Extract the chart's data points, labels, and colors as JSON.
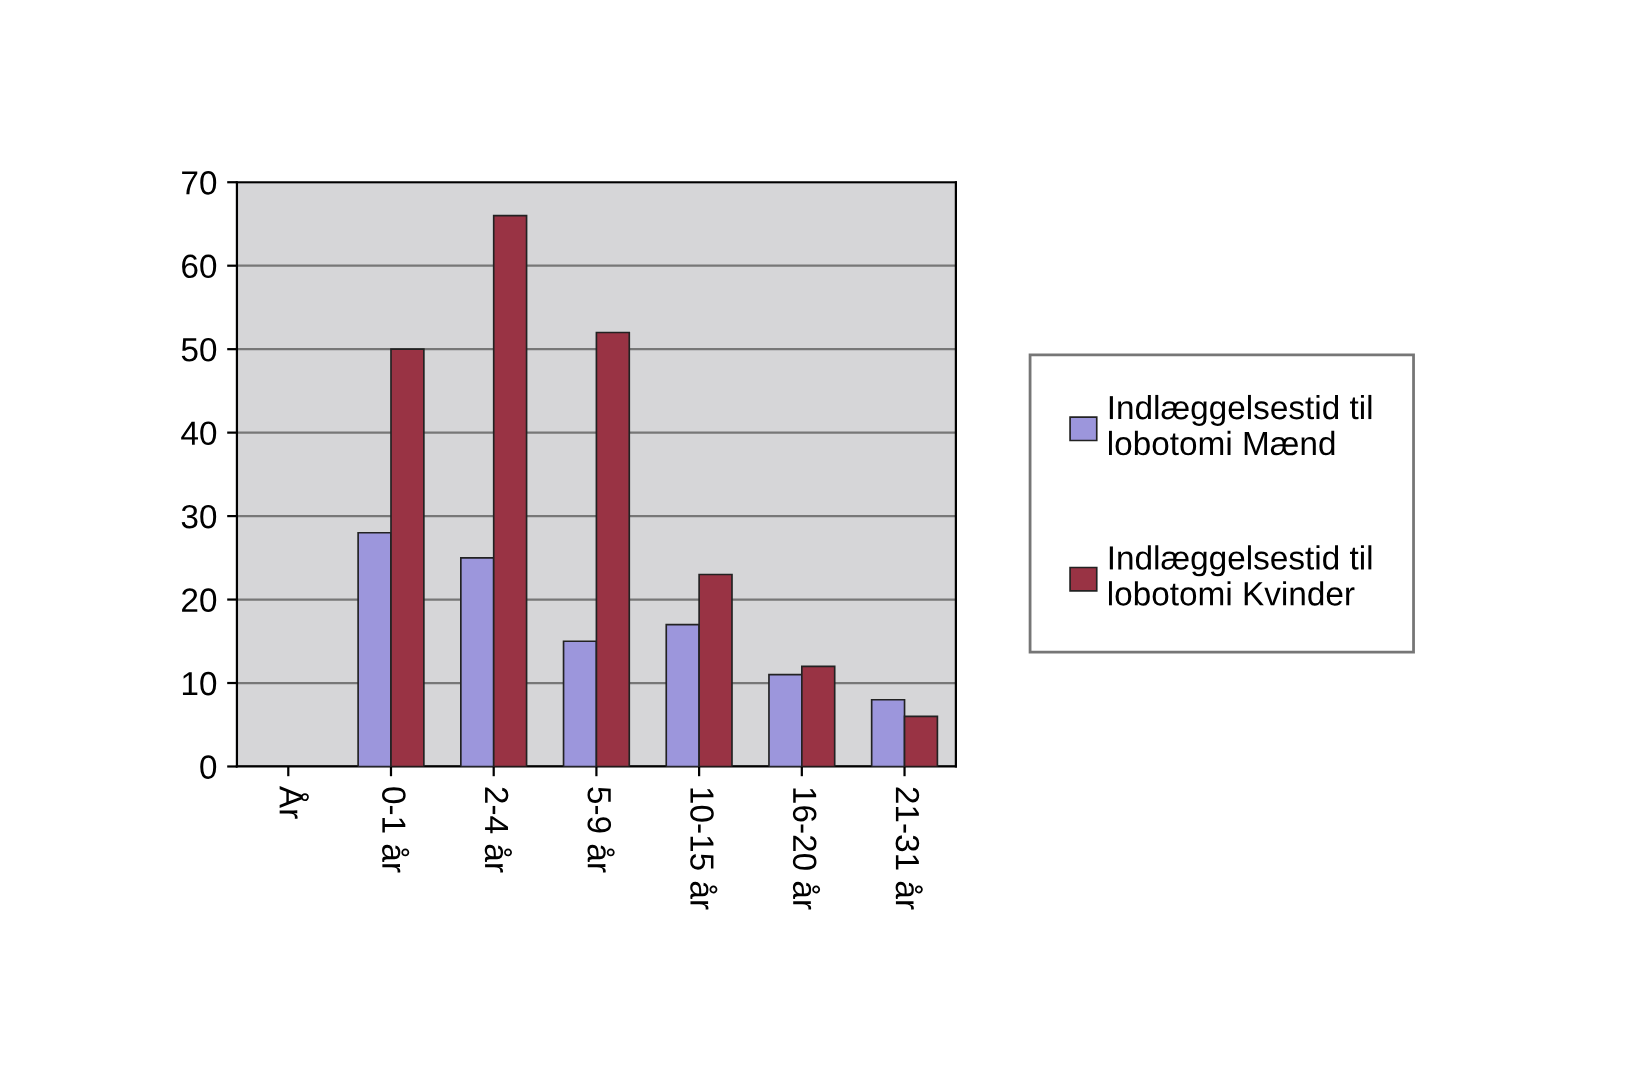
{
  "chart_data": {
    "type": "bar",
    "categories": [
      "År",
      "0-1 år",
      "2-4 år",
      "5-9 år",
      "10-15 år",
      "16-20 år",
      "21-31 år"
    ],
    "series": [
      {
        "name": "Indlæggelsestid til lobotomi Mænd",
        "color": "#9c96dc",
        "values": [
          null,
          28,
          25,
          15,
          17,
          11,
          8
        ]
      },
      {
        "name": "Indlæggelsestid til lobotomi Kvinder",
        "color": "#993344",
        "values": [
          null,
          50,
          66,
          52,
          23,
          12,
          6
        ]
      }
    ],
    "ylim": [
      0,
      70
    ],
    "yticks": [
      0,
      10,
      20,
      30,
      40,
      50,
      60,
      70
    ],
    "grid": "y",
    "legend": "right"
  }
}
